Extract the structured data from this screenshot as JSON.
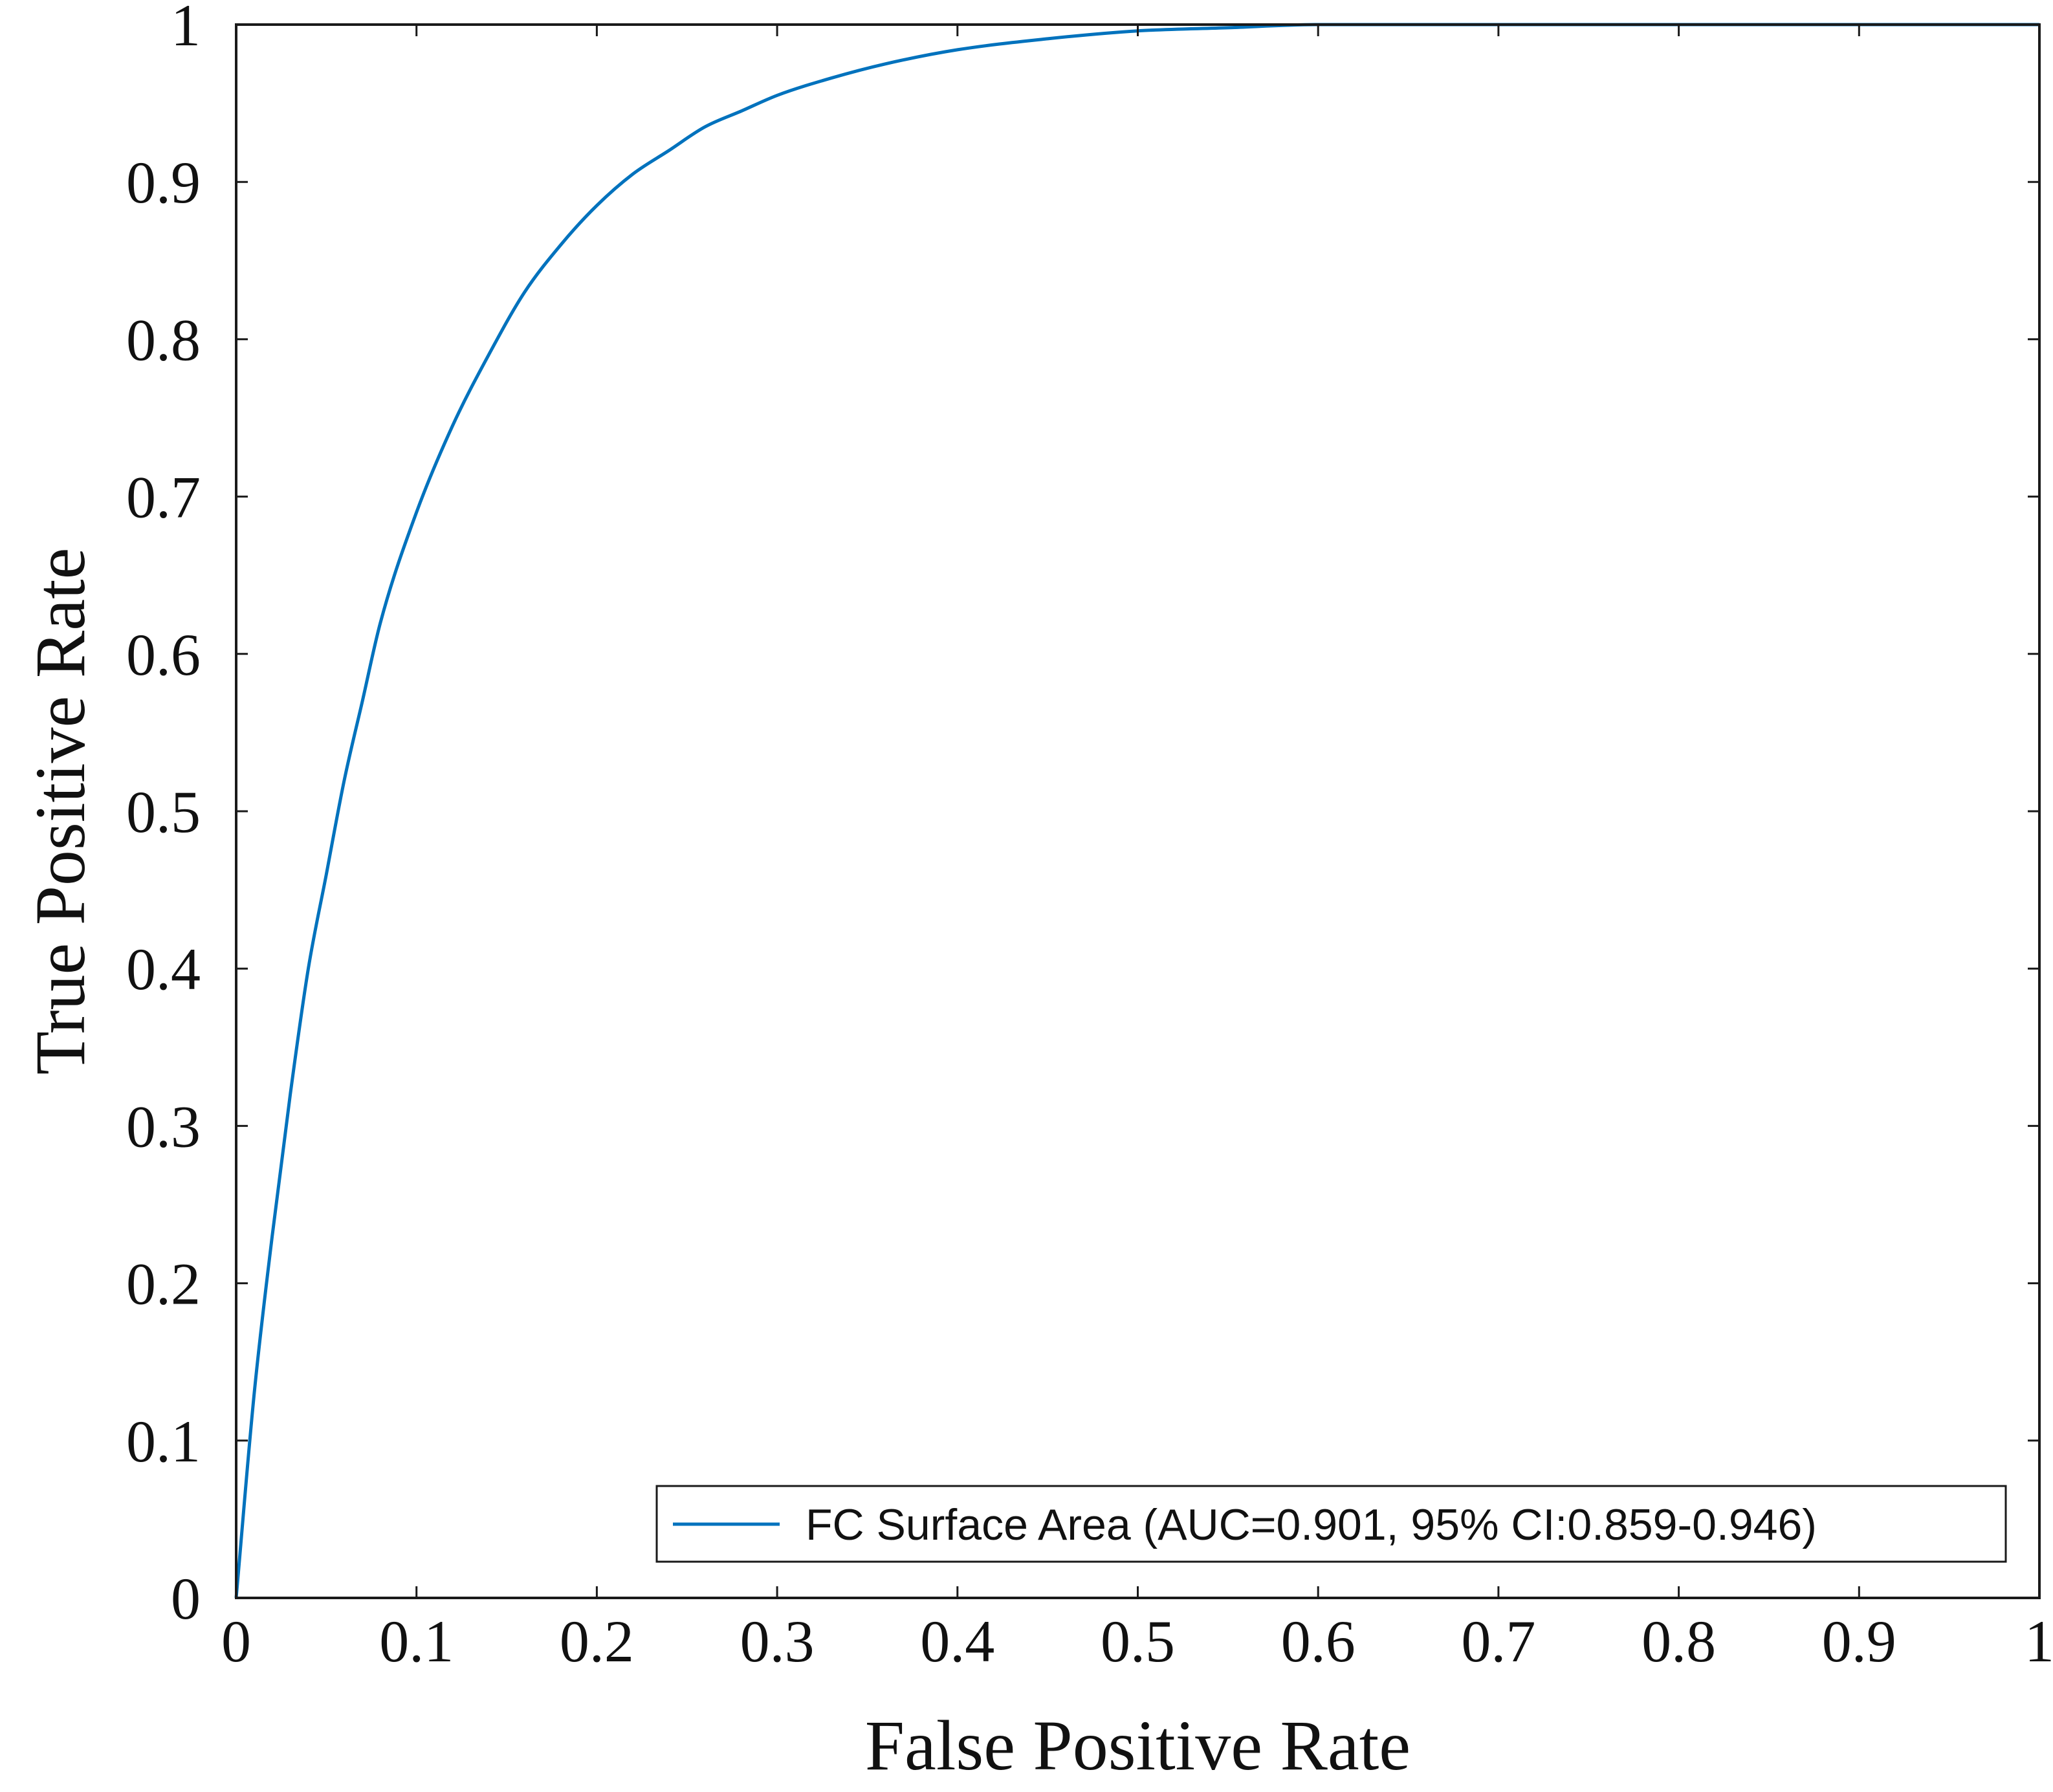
{
  "chart_data": {
    "type": "line",
    "title": "",
    "xlabel": "False Positive Rate",
    "ylabel": "True Positive Rate",
    "xlim": [
      0,
      1
    ],
    "ylim": [
      0,
      1
    ],
    "xticks": [
      {
        "value": 0,
        "label": "0"
      },
      {
        "value": 0.1,
        "label": "0.1"
      },
      {
        "value": 0.2,
        "label": "0.2"
      },
      {
        "value": 0.3,
        "label": "0.3"
      },
      {
        "value": 0.4,
        "label": "0.4"
      },
      {
        "value": 0.5,
        "label": "0.5"
      },
      {
        "value": 0.6,
        "label": "0.6"
      },
      {
        "value": 0.7,
        "label": "0.7"
      },
      {
        "value": 0.8,
        "label": "0.8"
      },
      {
        "value": 0.9,
        "label": "0.9"
      },
      {
        "value": 1,
        "label": "1"
      }
    ],
    "yticks": [
      {
        "value": 0,
        "label": "0"
      },
      {
        "value": 0.1,
        "label": "0.1"
      },
      {
        "value": 0.2,
        "label": "0.2"
      },
      {
        "value": 0.3,
        "label": "0.3"
      },
      {
        "value": 0.4,
        "label": "0.4"
      },
      {
        "value": 0.5,
        "label": "0.5"
      },
      {
        "value": 0.6,
        "label": "0.6"
      },
      {
        "value": 0.7,
        "label": "0.7"
      },
      {
        "value": 0.8,
        "label": "0.8"
      },
      {
        "value": 0.9,
        "label": "0.9"
      },
      {
        "value": 1,
        "label": "1"
      }
    ],
    "grid": false,
    "legend_position": "bottom-right",
    "series": [
      {
        "name": "FC Surface Area (AUC=0.901, 95% CI:0.859-0.946)",
        "color": "#0072BD",
        "x": [
          0,
          0.01,
          0.02,
          0.03,
          0.04,
          0.05,
          0.06,
          0.07,
          0.08,
          0.1,
          0.12,
          0.14,
          0.16,
          0.18,
          0.2,
          0.22,
          0.24,
          0.26,
          0.28,
          0.3,
          0.33,
          0.36,
          0.4,
          0.45,
          0.5,
          0.55,
          0.6,
          0.7,
          0.8,
          0.9,
          1
        ],
        "y": [
          0,
          0.13,
          0.23,
          0.32,
          0.4,
          0.46,
          0.52,
          0.57,
          0.62,
          0.69,
          0.745,
          0.79,
          0.83,
          0.86,
          0.885,
          0.905,
          0.92,
          0.935,
          0.945,
          0.955,
          0.966,
          0.975,
          0.984,
          0.991,
          0.996,
          0.998,
          1,
          1,
          1,
          1,
          1
        ]
      }
    ]
  }
}
